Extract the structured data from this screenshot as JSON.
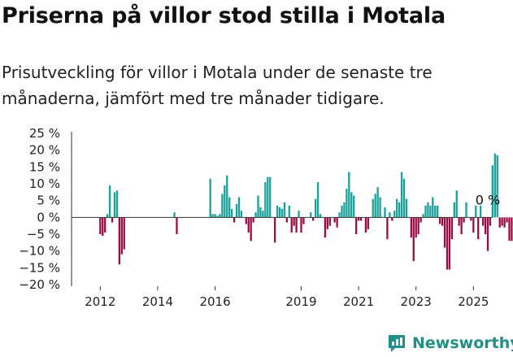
{
  "title": "Priserna på villor stod stilla i Motala",
  "subtitle": "Prisutveckling för villor i Motala under de senaste tre månaderna, jämfört med tre månader tidigare.",
  "logo": {
    "text": "Newsworthy",
    "icon": "newsworthy-logo-icon"
  },
  "colors": {
    "positive": "#1aa19a",
    "negative": "#9c0c45",
    "axis": "#333333",
    "brand": "#1f8f87"
  },
  "chart_data": {
    "type": "bar",
    "title": "Priserna på villor stod stilla i Motala",
    "ylabel": "",
    "xlabel": "",
    "ylim": [
      -20,
      25
    ],
    "yticks": [
      25,
      20,
      15,
      10,
      5,
      0,
      -5,
      -10,
      -15,
      -20
    ],
    "ytick_labels": [
      "25 %",
      "20 %",
      "15 %",
      "10 %",
      "5 %",
      "0 %",
      "−5 %",
      "−10 %",
      "−15 %",
      "−20 %"
    ],
    "x_start": 2011.0,
    "x_end": 2025.67,
    "step": 0.08333,
    "xticks": [
      2012,
      2014,
      2016,
      2019,
      2021,
      2023,
      2025
    ],
    "annotation": {
      "text": "0 %",
      "x": 2025.5,
      "y": 0
    },
    "values": [
      0,
      0,
      0,
      0,
      0,
      0,
      0,
      0,
      0,
      0,
      0,
      0,
      -5,
      -5.5,
      -4.5,
      1,
      9.5,
      -1.5,
      7.5,
      8,
      -14,
      -11,
      -9.5,
      0,
      0,
      0,
      0,
      0,
      0,
      0,
      0,
      0,
      0,
      0,
      0,
      0,
      0,
      0,
      0,
      0,
      0,
      0,
      0,
      1.5,
      -5,
      0,
      0,
      0,
      0,
      0,
      0,
      0,
      0,
      0,
      0,
      0,
      0,
      0,
      11.5,
      1,
      1,
      0.5,
      1,
      7,
      9.5,
      12.5,
      6,
      2.5,
      -1.5,
      4,
      6,
      2,
      0,
      -2,
      -4.5,
      -7,
      -1.5,
      1.5,
      6.5,
      3,
      2,
      10.5,
      12,
      12,
      0,
      -7.5,
      3.5,
      3,
      2.5,
      4.5,
      -1.5,
      3.5,
      -4.5,
      -2.5,
      -4.5,
      2,
      -4.5,
      -2,
      0,
      0,
      1.5,
      -1,
      5.5,
      10.5,
      1,
      0,
      -6,
      -3.5,
      -2.5,
      0,
      -1.5,
      -3,
      1.5,
      3.5,
      4.5,
      8.5,
      13.5,
      7.5,
      6.5,
      -5,
      -1,
      -1,
      0,
      -4.5,
      -3.5,
      0,
      5.5,
      7,
      9,
      6,
      0,
      3,
      -6.5,
      1.5,
      -1,
      2,
      5.5,
      4.5,
      13.5,
      11.5,
      5.5,
      0,
      -6,
      -13,
      -6,
      -5,
      -1.5,
      1,
      3.5,
      4.5,
      3.5,
      6,
      3.5,
      3.5,
      -2,
      -2.5,
      -9,
      -15.5,
      -15.5,
      -6.5,
      4.5,
      8,
      -2.5,
      -5,
      -1.5,
      4.5,
      0,
      -1,
      -4.5,
      3.5,
      -6.5,
      3.5,
      -2.5,
      -5,
      -10,
      -2.5,
      15.5,
      19,
      18.5,
      -3,
      -2.5,
      -3,
      -1.5,
      -7,
      -7,
      -7,
      0,
      0
    ]
  }
}
